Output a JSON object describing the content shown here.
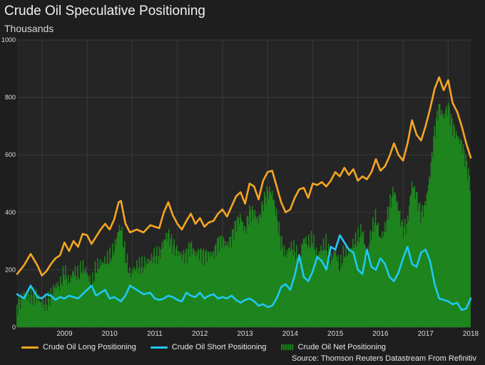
{
  "header": {
    "title": "Crude Oil Speculative Positioning",
    "subtitle": "Thousands"
  },
  "footer": {
    "source": "Source: Thomson Reuters Datastream From Refinitiv"
  },
  "colors": {
    "background": "#1e1e1e",
    "plot_background": "#252525",
    "grid": "#3a3a3a",
    "long": "#f5a623",
    "short": "#1fc8f5",
    "net": "#1e8a1e"
  },
  "chart_data": {
    "type": "line",
    "title": "Crude Oil Speculative Positioning",
    "subtitle": "Thousands",
    "xlabel": "",
    "ylabel": "",
    "xlim": [
      2008.45,
      2018.5
    ],
    "ylim": [
      0,
      1000
    ],
    "y_ticks": [
      0,
      200,
      400,
      600,
      800,
      1000
    ],
    "x_ticks": [
      "2009",
      "2010",
      "2011",
      "2012",
      "2013",
      "2014",
      "2015",
      "2016",
      "2017",
      "2018"
    ],
    "grid": true,
    "legend_position": "bottom",
    "series": [
      {
        "name": "Crude Oil Long Positioning",
        "type": "line",
        "color": "#f5a623",
        "x": [
          2008.45,
          2008.6,
          2008.75,
          2008.9,
          2009.0,
          2009.1,
          2009.2,
          2009.3,
          2009.4,
          2009.5,
          2009.6,
          2009.7,
          2009.8,
          2009.9,
          2010.0,
          2010.1,
          2010.2,
          2010.3,
          2010.4,
          2010.5,
          2010.6,
          2010.7,
          2010.75,
          2010.85,
          2010.95,
          2011.1,
          2011.25,
          2011.4,
          2011.5,
          2011.6,
          2011.7,
          2011.8,
          2011.9,
          2012.0,
          2012.1,
          2012.2,
          2012.3,
          2012.4,
          2012.5,
          2012.6,
          2012.7,
          2012.8,
          2012.9,
          2013.0,
          2013.1,
          2013.2,
          2013.3,
          2013.4,
          2013.5,
          2013.6,
          2013.7,
          2013.8,
          2013.9,
          2014.0,
          2014.1,
          2014.2,
          2014.3,
          2014.4,
          2014.5,
          2014.6,
          2014.7,
          2014.8,
          2014.9,
          2015.0,
          2015.1,
          2015.2,
          2015.3,
          2015.4,
          2015.5,
          2015.6,
          2015.7,
          2015.8,
          2015.9,
          2016.0,
          2016.1,
          2016.2,
          2016.3,
          2016.4,
          2016.5,
          2016.6,
          2016.7,
          2016.8,
          2016.9,
          2017.0,
          2017.1,
          2017.2,
          2017.3,
          2017.4,
          2017.5,
          2017.6,
          2017.7,
          2017.8,
          2017.9,
          2018.0,
          2018.1,
          2018.2,
          2018.3,
          2018.4,
          2018.5
        ],
        "values": [
          185,
          215,
          255,
          215,
          180,
          195,
          220,
          240,
          250,
          295,
          265,
          300,
          280,
          325,
          320,
          290,
          315,
          340,
          360,
          340,
          375,
          435,
          440,
          360,
          330,
          340,
          330,
          355,
          350,
          345,
          400,
          435,
          390,
          360,
          340,
          370,
          395,
          360,
          380,
          350,
          365,
          370,
          395,
          410,
          385,
          420,
          455,
          470,
          430,
          500,
          490,
          445,
          510,
          540,
          545,
          490,
          435,
          400,
          410,
          450,
          480,
          485,
          450,
          500,
          495,
          505,
          490,
          510,
          540,
          525,
          555,
          530,
          550,
          510,
          525,
          515,
          540,
          585,
          545,
          560,
          595,
          640,
          600,
          580,
          640,
          720,
          670,
          650,
          700,
          760,
          830,
          870,
          825,
          860,
          780,
          750,
          700,
          640,
          590
        ]
      },
      {
        "name": "Crude Oil Short Positioning",
        "type": "line",
        "color": "#1fc8f5",
        "x": [
          2008.45,
          2008.6,
          2008.75,
          2008.9,
          2009.0,
          2009.1,
          2009.2,
          2009.3,
          2009.4,
          2009.5,
          2009.6,
          2009.7,
          2009.8,
          2009.9,
          2010.0,
          2010.1,
          2010.2,
          2010.3,
          2010.4,
          2010.5,
          2010.6,
          2010.7,
          2010.75,
          2010.85,
          2010.95,
          2011.1,
          2011.25,
          2011.4,
          2011.5,
          2011.6,
          2011.7,
          2011.8,
          2011.9,
          2012.0,
          2012.1,
          2012.2,
          2012.3,
          2012.4,
          2012.5,
          2012.6,
          2012.7,
          2012.8,
          2012.9,
          2013.0,
          2013.1,
          2013.2,
          2013.3,
          2013.4,
          2013.5,
          2013.6,
          2013.7,
          2013.8,
          2013.9,
          2014.0,
          2014.1,
          2014.2,
          2014.3,
          2014.4,
          2014.5,
          2014.6,
          2014.7,
          2014.8,
          2014.9,
          2015.0,
          2015.1,
          2015.2,
          2015.3,
          2015.4,
          2015.5,
          2015.6,
          2015.7,
          2015.8,
          2015.9,
          2016.0,
          2016.1,
          2016.2,
          2016.3,
          2016.4,
          2016.5,
          2016.6,
          2016.7,
          2016.8,
          2016.9,
          2017.0,
          2017.1,
          2017.2,
          2017.3,
          2017.4,
          2017.5,
          2017.6,
          2017.7,
          2017.8,
          2017.9,
          2018.0,
          2018.1,
          2018.2,
          2018.3,
          2018.4,
          2018.5
        ],
        "values": [
          115,
          100,
          145,
          105,
          100,
          115,
          110,
          95,
          105,
          100,
          110,
          105,
          100,
          115,
          130,
          145,
          110,
          120,
          130,
          100,
          105,
          95,
          90,
          110,
          145,
          130,
          115,
          120,
          100,
          95,
          100,
          110,
          105,
          95,
          90,
          120,
          110,
          105,
          120,
          100,
          110,
          115,
          100,
          105,
          100,
          110,
          95,
          85,
          95,
          100,
          90,
          75,
          80,
          70,
          75,
          100,
          140,
          150,
          130,
          180,
          250,
          175,
          160,
          195,
          245,
          230,
          200,
          280,
          270,
          320,
          295,
          270,
          260,
          200,
          185,
          270,
          210,
          200,
          240,
          220,
          175,
          160,
          190,
          240,
          280,
          220,
          210,
          260,
          270,
          230,
          150,
          100,
          95,
          90,
          80,
          85,
          60,
          65,
          100
        ]
      },
      {
        "name": "Crude Oil Net Positioning",
        "type": "bar",
        "color": "#1e8a1e",
        "x": [
          2008.45,
          2008.6,
          2008.75,
          2008.9,
          2009.0,
          2009.1,
          2009.2,
          2009.3,
          2009.4,
          2009.5,
          2009.6,
          2009.7,
          2009.8,
          2009.9,
          2010.0,
          2010.1,
          2010.2,
          2010.3,
          2010.4,
          2010.5,
          2010.6,
          2010.7,
          2010.75,
          2010.85,
          2010.95,
          2011.1,
          2011.25,
          2011.4,
          2011.5,
          2011.6,
          2011.7,
          2011.8,
          2011.9,
          2012.0,
          2012.1,
          2012.2,
          2012.3,
          2012.4,
          2012.5,
          2012.6,
          2012.7,
          2012.8,
          2012.9,
          2013.0,
          2013.1,
          2013.2,
          2013.3,
          2013.4,
          2013.5,
          2013.6,
          2013.7,
          2013.8,
          2013.9,
          2014.0,
          2014.1,
          2014.2,
          2014.3,
          2014.4,
          2014.5,
          2014.6,
          2014.7,
          2014.8,
          2014.9,
          2015.0,
          2015.1,
          2015.2,
          2015.3,
          2015.4,
          2015.5,
          2015.6,
          2015.7,
          2015.8,
          2015.9,
          2016.0,
          2016.1,
          2016.2,
          2016.3,
          2016.4,
          2016.5,
          2016.6,
          2016.7,
          2016.8,
          2016.9,
          2017.0,
          2017.1,
          2017.2,
          2017.3,
          2017.4,
          2017.5,
          2017.6,
          2017.7,
          2017.8,
          2017.9,
          2018.0,
          2018.1,
          2018.2,
          2018.3,
          2018.4,
          2018.5
        ],
        "values": [
          70,
          115,
          110,
          110,
          80,
          80,
          110,
          145,
          145,
          195,
          155,
          195,
          180,
          210,
          190,
          145,
          205,
          220,
          230,
          240,
          270,
          340,
          350,
          250,
          185,
          210,
          215,
          235,
          250,
          250,
          300,
          325,
          285,
          265,
          250,
          250,
          285,
          255,
          260,
          250,
          255,
          255,
          295,
          305,
          285,
          310,
          360,
          385,
          335,
          400,
          400,
          370,
          430,
          470,
          470,
          390,
          295,
          250,
          280,
          270,
          230,
          310,
          290,
          305,
          250,
          275,
          290,
          230,
          270,
          205,
          260,
          260,
          290,
          310,
          340,
          245,
          330,
          385,
          305,
          340,
          420,
          480,
          410,
          340,
          360,
          500,
          460,
          390,
          430,
          530,
          680,
          770,
          730,
          770,
          700,
          665,
          640,
          575,
          490
        ]
      }
    ]
  }
}
